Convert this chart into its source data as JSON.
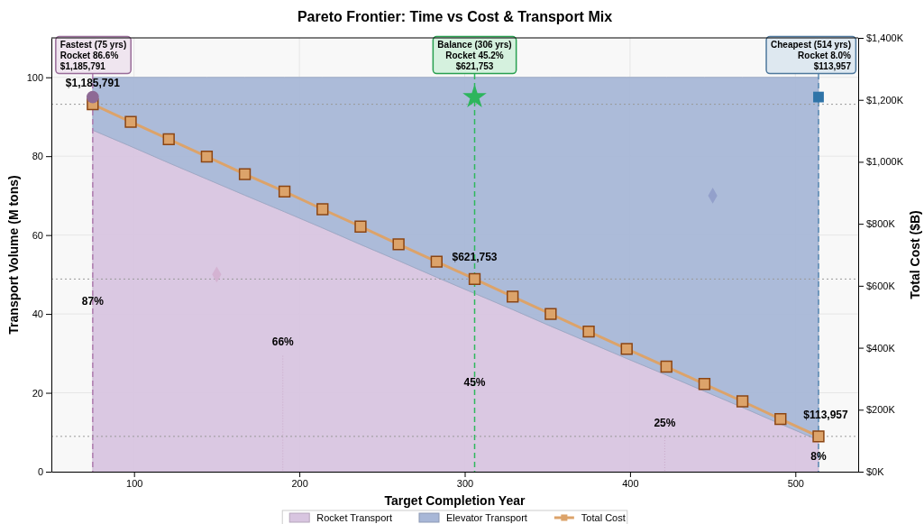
{
  "chart_data": {
    "type": "area",
    "title": "Pareto Frontier: Time vs Cost & Transport Mix",
    "xlabel": "Target Completion Year",
    "ylabel": "Transport Volume (M tons)",
    "y2label": "Total Cost ($B)",
    "x": [
      75,
      98,
      121,
      144,
      167,
      191,
      214,
      237,
      260,
      283,
      306,
      329,
      352,
      375,
      398,
      422,
      445,
      468,
      491,
      514
    ],
    "stacked": true,
    "series": [
      {
        "name": "Rocket Transport",
        "color": "#d8c5e0",
        "values": [
          86.6,
          82.5,
          78.3,
          74.2,
          70.1,
          65.9,
          61.8,
          57.6,
          53.5,
          49.3,
          45.2,
          41.1,
          36.9,
          32.8,
          28.7,
          24.5,
          20.4,
          16.3,
          12.1,
          8.0
        ]
      },
      {
        "name": "Elevator Transport",
        "color": "#a8b7d7",
        "values": [
          13.4,
          17.5,
          21.7,
          25.8,
          29.9,
          34.1,
          38.2,
          42.4,
          46.5,
          50.7,
          54.8,
          58.9,
          63.1,
          67.2,
          71.3,
          75.5,
          79.6,
          83.7,
          87.9,
          92.0
        ]
      },
      {
        "name": "Total Cost",
        "type": "line",
        "axis": "y2",
        "color": "#dca36a",
        "marker": "square",
        "values": [
          1185791,
          1129000,
          1073000,
          1017000,
          960000,
          904000,
          847000,
          791000,
          734000,
          678000,
          621753,
          565000,
          509000,
          452000,
          396000,
          339000,
          283000,
          227000,
          170000,
          113957
        ],
        "value_labels": [
          "$1,185,791",
          null,
          null,
          null,
          null,
          null,
          null,
          null,
          null,
          null,
          "$621,753",
          null,
          null,
          null,
          null,
          null,
          null,
          null,
          null,
          "$113,957"
        ]
      },
      {
        "type": "scatter",
        "marker": "circle",
        "color": "#8e6a95",
        "x": [
          75
        ],
        "values": [
          95
        ]
      },
      {
        "type": "scatter",
        "marker": "star",
        "color": "#2db55d",
        "x": [
          306
        ],
        "values": [
          95
        ]
      },
      {
        "type": "scatter",
        "marker": "square",
        "color": "#2f74a8",
        "x": [
          514
        ],
        "values": [
          95
        ]
      },
      {
        "type": "scatter",
        "marker": "diamond",
        "colors": [
          "#d4b3d2",
          "#93a0cb"
        ],
        "x": [
          150,
          450
        ],
        "values": [
          50,
          70
        ]
      }
    ],
    "xlim": [
      50,
      538
    ],
    "xticks": [
      100,
      200,
      300,
      400,
      500
    ],
    "ylim": [
      0,
      110
    ],
    "yticks": [
      0,
      20,
      40,
      60,
      80,
      100
    ],
    "y2lim": [
      0,
      1400000
    ],
    "y2ticks": [
      {
        "value": 0,
        "label": "$0K"
      },
      {
        "value": 200000,
        "label": "$200K"
      },
      {
        "value": 400000,
        "label": "$400K"
      },
      {
        "value": 600000,
        "label": "$600K"
      },
      {
        "value": 800000,
        "label": "$800K"
      },
      {
        "value": 1000000,
        "label": "$1,000K"
      },
      {
        "value": 1200000,
        "label": "$1,200K"
      },
      {
        "value": 1400000,
        "label": "$1,400K"
      }
    ],
    "ref_lines": [
      {
        "axis": "x",
        "value": 75,
        "color": "#b07cb0",
        "line_style": "dashed"
      },
      {
        "axis": "x",
        "value": 306,
        "color": "#2eb85c",
        "line_style": "dashed"
      },
      {
        "axis": "x",
        "value": 514,
        "color": "#5a8ab5",
        "line_style": "dashed"
      },
      {
        "axis": "y2",
        "value": 1185791,
        "color": "#999999",
        "line_style": "dotted"
      },
      {
        "axis": "y2",
        "value": 621753,
        "color": "#999999",
        "line_style": "dotted"
      },
      {
        "axis": "y2",
        "value": 113957,
        "color": "#999999",
        "line_style": "dotted"
      }
    ],
    "annotations": [
      {
        "text": "Fastest (75 yrs)\nRocket 86.6%\n$1,185,791",
        "x": 75,
        "y": 95
      },
      {
        "text": "Balance (306 yrs)\nRocket 45.2%\n$621,753",
        "x": 306,
        "y": 95
      },
      {
        "text": "Cheapest (514 yrs)\nRocket 8.0%\n$113,957",
        "x": 514,
        "y": 95
      },
      {
        "text": "87%",
        "x": 75,
        "y": 43.3
      },
      {
        "text": "66%",
        "x": 190,
        "y": 0
      },
      {
        "text": "45%",
        "x": 306,
        "y": 22.6
      },
      {
        "text": "25%",
        "x": 421,
        "y": 0
      },
      {
        "text": "8%",
        "x": 514,
        "y": 0
      }
    ],
    "grid": true,
    "legend": "bottom"
  }
}
